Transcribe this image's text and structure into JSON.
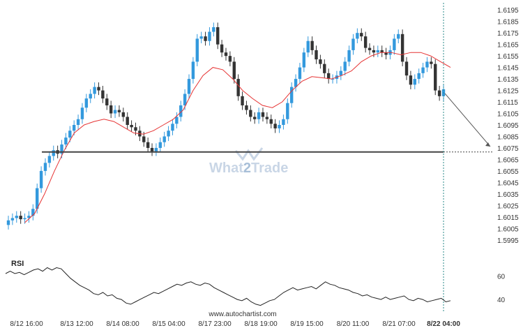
{
  "watermark": {
    "part1": "What",
    "part2": "2",
    "part3": "Trade"
  },
  "footer": {
    "url": "www.autochartist.com"
  },
  "colors": {
    "bullish": "#3399dd",
    "bearish": "#333333",
    "ma_line": "#e63333",
    "level_line": "#444444",
    "rsi_line": "#222222",
    "axis_text": "#333333",
    "watermark": "#c9d6e6",
    "vertical_marker": "#2a8a8a"
  },
  "chart_data": [
    {
      "type": "candlestick",
      "title": "",
      "x_tick_labels": [
        "8/12 16:00",
        "8/13 12:00",
        "8/14 08:00",
        "8/15 04:00",
        "8/17 23:00",
        "8/18 19:00",
        "8/19 15:00",
        "8/20 11:00",
        "8/21 07:00",
        "8/22 04:00"
      ],
      "y_tick_labels": [
        "1.6195",
        "1.6185",
        "1.6175",
        "1.6165",
        "1.6155",
        "1.6145",
        "1.6135",
        "1.6125",
        "1.6115",
        "1.6105",
        "1.6095",
        "1.6085",
        "1.6075",
        "1.6065",
        "1.6055",
        "1.6045",
        "1.6035",
        "1.6025",
        "1.6015",
        "1.6005",
        "1.5995"
      ],
      "ylim": [
        1.599,
        1.62
      ],
      "grid": false,
      "series": [
        {
          "role": "close",
          "values": [
            1.6012,
            1.6014,
            1.6016,
            1.6013,
            1.6014,
            1.6016,
            1.6022,
            1.604,
            1.6055,
            1.6062,
            1.6068,
            1.6073,
            1.607,
            1.6078,
            1.6084,
            1.609,
            1.6095,
            1.61,
            1.611,
            1.6118,
            1.6122,
            1.6128,
            1.6125,
            1.6118,
            1.6112,
            1.6105,
            1.6108,
            1.6106,
            1.6102,
            1.6095,
            1.6093,
            1.609,
            1.6085,
            1.608,
            1.6075,
            1.6072,
            1.6075,
            1.608,
            1.6085,
            1.609,
            1.6096,
            1.6102,
            1.6112,
            1.6122,
            1.6135,
            1.615,
            1.617,
            1.6172,
            1.6168,
            1.6176,
            1.618,
            1.6165,
            1.6158,
            1.6155,
            1.615,
            1.6135,
            1.612,
            1.6112,
            1.6108,
            1.6102,
            1.61,
            1.6106,
            1.6102,
            1.61,
            1.6096,
            1.6092,
            1.6095,
            1.61,
            1.6114,
            1.6128,
            1.6135,
            1.6145,
            1.6158,
            1.6168,
            1.616,
            1.6152,
            1.6148,
            1.614,
            1.6135,
            1.6135,
            1.6138,
            1.6142,
            1.615,
            1.616,
            1.617,
            1.6175,
            1.6172,
            1.6162,
            1.616,
            1.6158,
            1.616,
            1.6158,
            1.6156,
            1.616,
            1.617,
            1.6174,
            1.615,
            1.6138,
            1.613,
            1.6135,
            1.614,
            1.6145,
            1.615,
            1.6148,
            1.6125,
            1.612,
            1.6126
          ],
          "note": "approximate close prices read from candles; some intermediate points estimated"
        },
        {
          "role": "moving_average",
          "name": "",
          "values": [
            1.601,
            1.6018,
            1.6035,
            1.6055,
            1.6073,
            1.6088,
            1.6095,
            1.6098,
            1.61,
            1.6098,
            1.6093,
            1.6088,
            1.6087,
            1.609,
            1.6095,
            1.61,
            1.6108,
            1.6125,
            1.6138,
            1.6145,
            1.6143,
            1.6135,
            1.6125,
            1.6118,
            1.6112,
            1.611,
            1.6115,
            1.6125,
            1.6133,
            1.6137,
            1.6136,
            1.6135,
            1.6138,
            1.6142,
            1.615,
            1.6155,
            1.6158,
            1.6158,
            1.6156,
            1.6158,
            1.6158,
            1.6155,
            1.615,
            1.6145
          ]
        }
      ],
      "support_level": 1.60715,
      "projection": {
        "target": 1.6075
      },
      "current_time_marker": "8/22 04:00"
    },
    {
      "type": "line",
      "title": "RSI",
      "y_tick_labels": [
        "60",
        "40"
      ],
      "ylim": [
        30,
        75
      ],
      "values": [
        62,
        64,
        62,
        63,
        61,
        63,
        65,
        66,
        64,
        67,
        65,
        67,
        66,
        62,
        58,
        55,
        52,
        50,
        48,
        45,
        44,
        46,
        43,
        44,
        41,
        40,
        37,
        36,
        38,
        40,
        42,
        44,
        46,
        45,
        47,
        49,
        51,
        53,
        52,
        54,
        55,
        53,
        52,
        54,
        53,
        50,
        48,
        46,
        44,
        42,
        40,
        39,
        41,
        38,
        36,
        35,
        37,
        39,
        40,
        43,
        46,
        48,
        50,
        48,
        49,
        50,
        51,
        49,
        52,
        55,
        53,
        52,
        50,
        49,
        48,
        46,
        45,
        43,
        44,
        42,
        41,
        40,
        42,
        40,
        41,
        42,
        43,
        40,
        39,
        41,
        40,
        38,
        39,
        40,
        41,
        38,
        39
      ]
    }
  ]
}
